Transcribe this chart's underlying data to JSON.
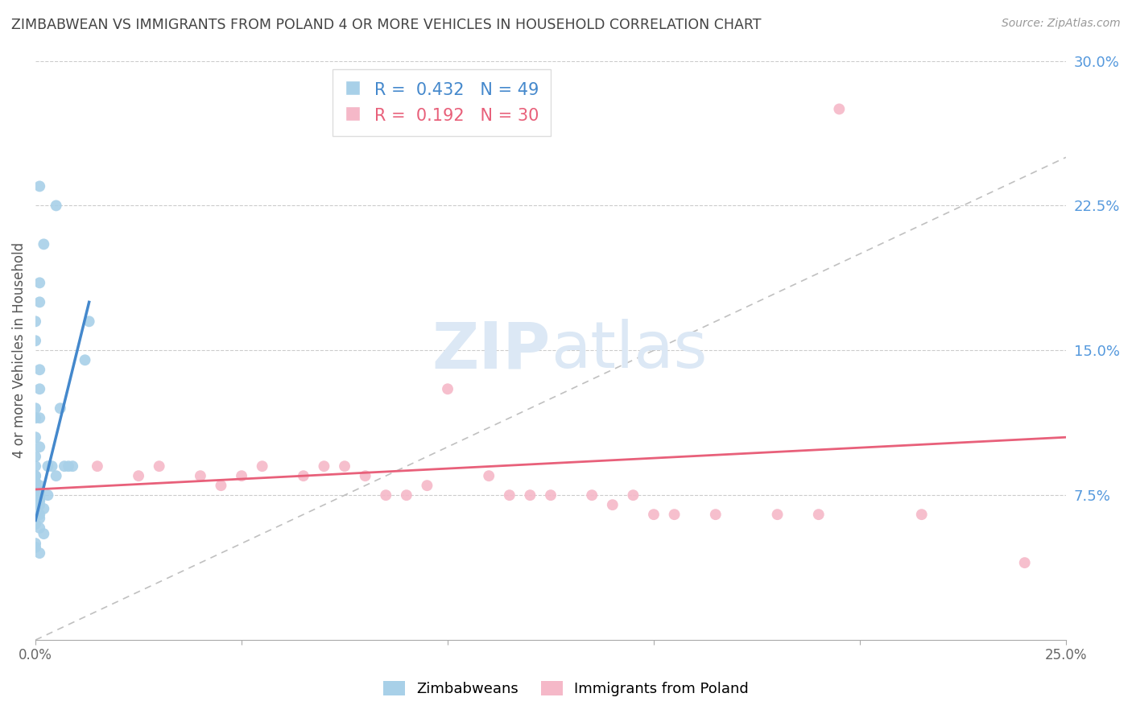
{
  "title": "ZIMBABWEAN VS IMMIGRANTS FROM POLAND 4 OR MORE VEHICLES IN HOUSEHOLD CORRELATION CHART",
  "source": "Source: ZipAtlas.com",
  "ylabel": "4 or more Vehicles in Household",
  "x_min": 0.0,
  "x_max": 0.25,
  "y_min": 0.0,
  "y_max": 0.3,
  "x_ticks": [
    0.0,
    0.05,
    0.1,
    0.15,
    0.2,
    0.25
  ],
  "x_tick_labels": [
    "0.0%",
    "",
    "",
    "",
    "",
    "25.0%"
  ],
  "y_ticks_right": [
    0.075,
    0.15,
    0.225,
    0.3
  ],
  "y_tick_labels_right": [
    "7.5%",
    "15.0%",
    "22.5%",
    "30.0%"
  ],
  "blue_R": 0.432,
  "blue_N": 49,
  "pink_R": 0.192,
  "pink_N": 30,
  "blue_color": "#a8d0e8",
  "blue_line_color": "#4488cc",
  "pink_color": "#f5b8c8",
  "pink_line_color": "#e8607a",
  "dashed_line_color": "#c0c0c0",
  "grid_color": "#cccccc",
  "title_color": "#444444",
  "right_axis_color": "#5599dd",
  "watermark_color": "#dce8f5",
  "blue_scatter_x": [
    0.001,
    0.002,
    0.001,
    0.001,
    0.0,
    0.0,
    0.001,
    0.001,
    0.0,
    0.001,
    0.0,
    0.0,
    0.001,
    0.0,
    0.0,
    0.0,
    0.0,
    0.0,
    0.001,
    0.0,
    0.0,
    0.001,
    0.001,
    0.001,
    0.0,
    0.001,
    0.001,
    0.0,
    0.001,
    0.002,
    0.001,
    0.001,
    0.0,
    0.001,
    0.002,
    0.0,
    0.0,
    0.001,
    0.003,
    0.003,
    0.004,
    0.005,
    0.005,
    0.006,
    0.007,
    0.008,
    0.009,
    0.012,
    0.013
  ],
  "blue_scatter_y": [
    0.235,
    0.205,
    0.185,
    0.175,
    0.165,
    0.155,
    0.14,
    0.13,
    0.12,
    0.115,
    0.115,
    0.105,
    0.1,
    0.095,
    0.09,
    0.085,
    0.085,
    0.082,
    0.08,
    0.08,
    0.078,
    0.077,
    0.075,
    0.075,
    0.075,
    0.073,
    0.072,
    0.07,
    0.07,
    0.068,
    0.065,
    0.063,
    0.06,
    0.058,
    0.055,
    0.05,
    0.048,
    0.045,
    0.09,
    0.075,
    0.09,
    0.085,
    0.225,
    0.12,
    0.09,
    0.09,
    0.09,
    0.145,
    0.165
  ],
  "pink_scatter_x": [
    0.015,
    0.025,
    0.03,
    0.04,
    0.045,
    0.05,
    0.055,
    0.065,
    0.07,
    0.075,
    0.08,
    0.085,
    0.09,
    0.095,
    0.1,
    0.11,
    0.115,
    0.12,
    0.125,
    0.135,
    0.14,
    0.145,
    0.15,
    0.155,
    0.165,
    0.18,
    0.19,
    0.195,
    0.215,
    0.24
  ],
  "pink_scatter_y": [
    0.09,
    0.085,
    0.09,
    0.085,
    0.08,
    0.085,
    0.09,
    0.085,
    0.09,
    0.09,
    0.085,
    0.075,
    0.075,
    0.08,
    0.13,
    0.085,
    0.075,
    0.075,
    0.075,
    0.075,
    0.07,
    0.075,
    0.065,
    0.065,
    0.065,
    0.065,
    0.065,
    0.275,
    0.065,
    0.04
  ],
  "blue_trend_x": [
    0.0,
    0.013
  ],
  "blue_trend_y": [
    0.062,
    0.175
  ],
  "pink_trend_x": [
    0.0,
    0.25
  ],
  "pink_trend_y": [
    0.078,
    0.105
  ],
  "legend_labels": [
    "Zimbabweans",
    "Immigrants from Poland"
  ],
  "figsize": [
    14.06,
    8.92
  ],
  "dpi": 100
}
